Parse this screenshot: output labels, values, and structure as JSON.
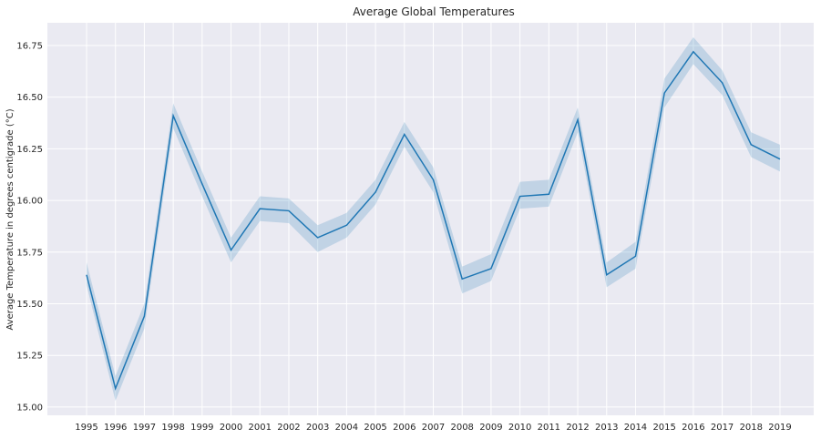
{
  "chart_data": {
    "type": "line",
    "title": "Average Global Temperatures",
    "xlabel": "",
    "ylabel": "Average Temperature in degrees centigrade (°C)",
    "ylim": [
      14.96,
      16.86
    ],
    "yticks": [
      "15.00",
      "15.25",
      "15.50",
      "15.75",
      "16.00",
      "16.25",
      "16.50",
      "16.75"
    ],
    "categories": [
      "1995",
      "1996",
      "1997",
      "1998",
      "1999",
      "2000",
      "2001",
      "2002",
      "2003",
      "2004",
      "2005",
      "2006",
      "2007",
      "2008",
      "2009",
      "2010",
      "2011",
      "2012",
      "2013",
      "2014",
      "2015",
      "2016",
      "2017",
      "2018",
      "2019"
    ],
    "series": [
      {
        "values": [
          15.64,
          15.09,
          15.44,
          16.41,
          16.08,
          15.76,
          15.96,
          15.95,
          15.82,
          15.88,
          16.04,
          16.32,
          16.1,
          15.62,
          15.67,
          16.02,
          16.03,
          16.39,
          15.64,
          15.73,
          16.52,
          16.72,
          16.57,
          16.27,
          16.2
        ],
        "ci_lower": [
          15.59,
          15.03,
          15.38,
          16.35,
          16.02,
          15.7,
          15.9,
          15.89,
          15.75,
          15.82,
          15.98,
          16.26,
          16.04,
          15.55,
          15.61,
          15.96,
          15.97,
          16.33,
          15.58,
          15.67,
          16.45,
          16.66,
          16.51,
          16.21,
          16.14
        ],
        "ci_upper": [
          15.7,
          15.15,
          15.5,
          16.47,
          16.14,
          15.82,
          16.02,
          16.01,
          15.88,
          15.94,
          16.1,
          16.38,
          16.16,
          15.68,
          15.74,
          16.09,
          16.1,
          16.45,
          15.7,
          15.8,
          16.59,
          16.79,
          16.63,
          16.33,
          16.27
        ]
      }
    ],
    "grid": true,
    "colors": {
      "background": "#eaeaf2",
      "line": "#1f77b4",
      "band": "#1f77b4",
      "grid": "#ffffff"
    }
  }
}
